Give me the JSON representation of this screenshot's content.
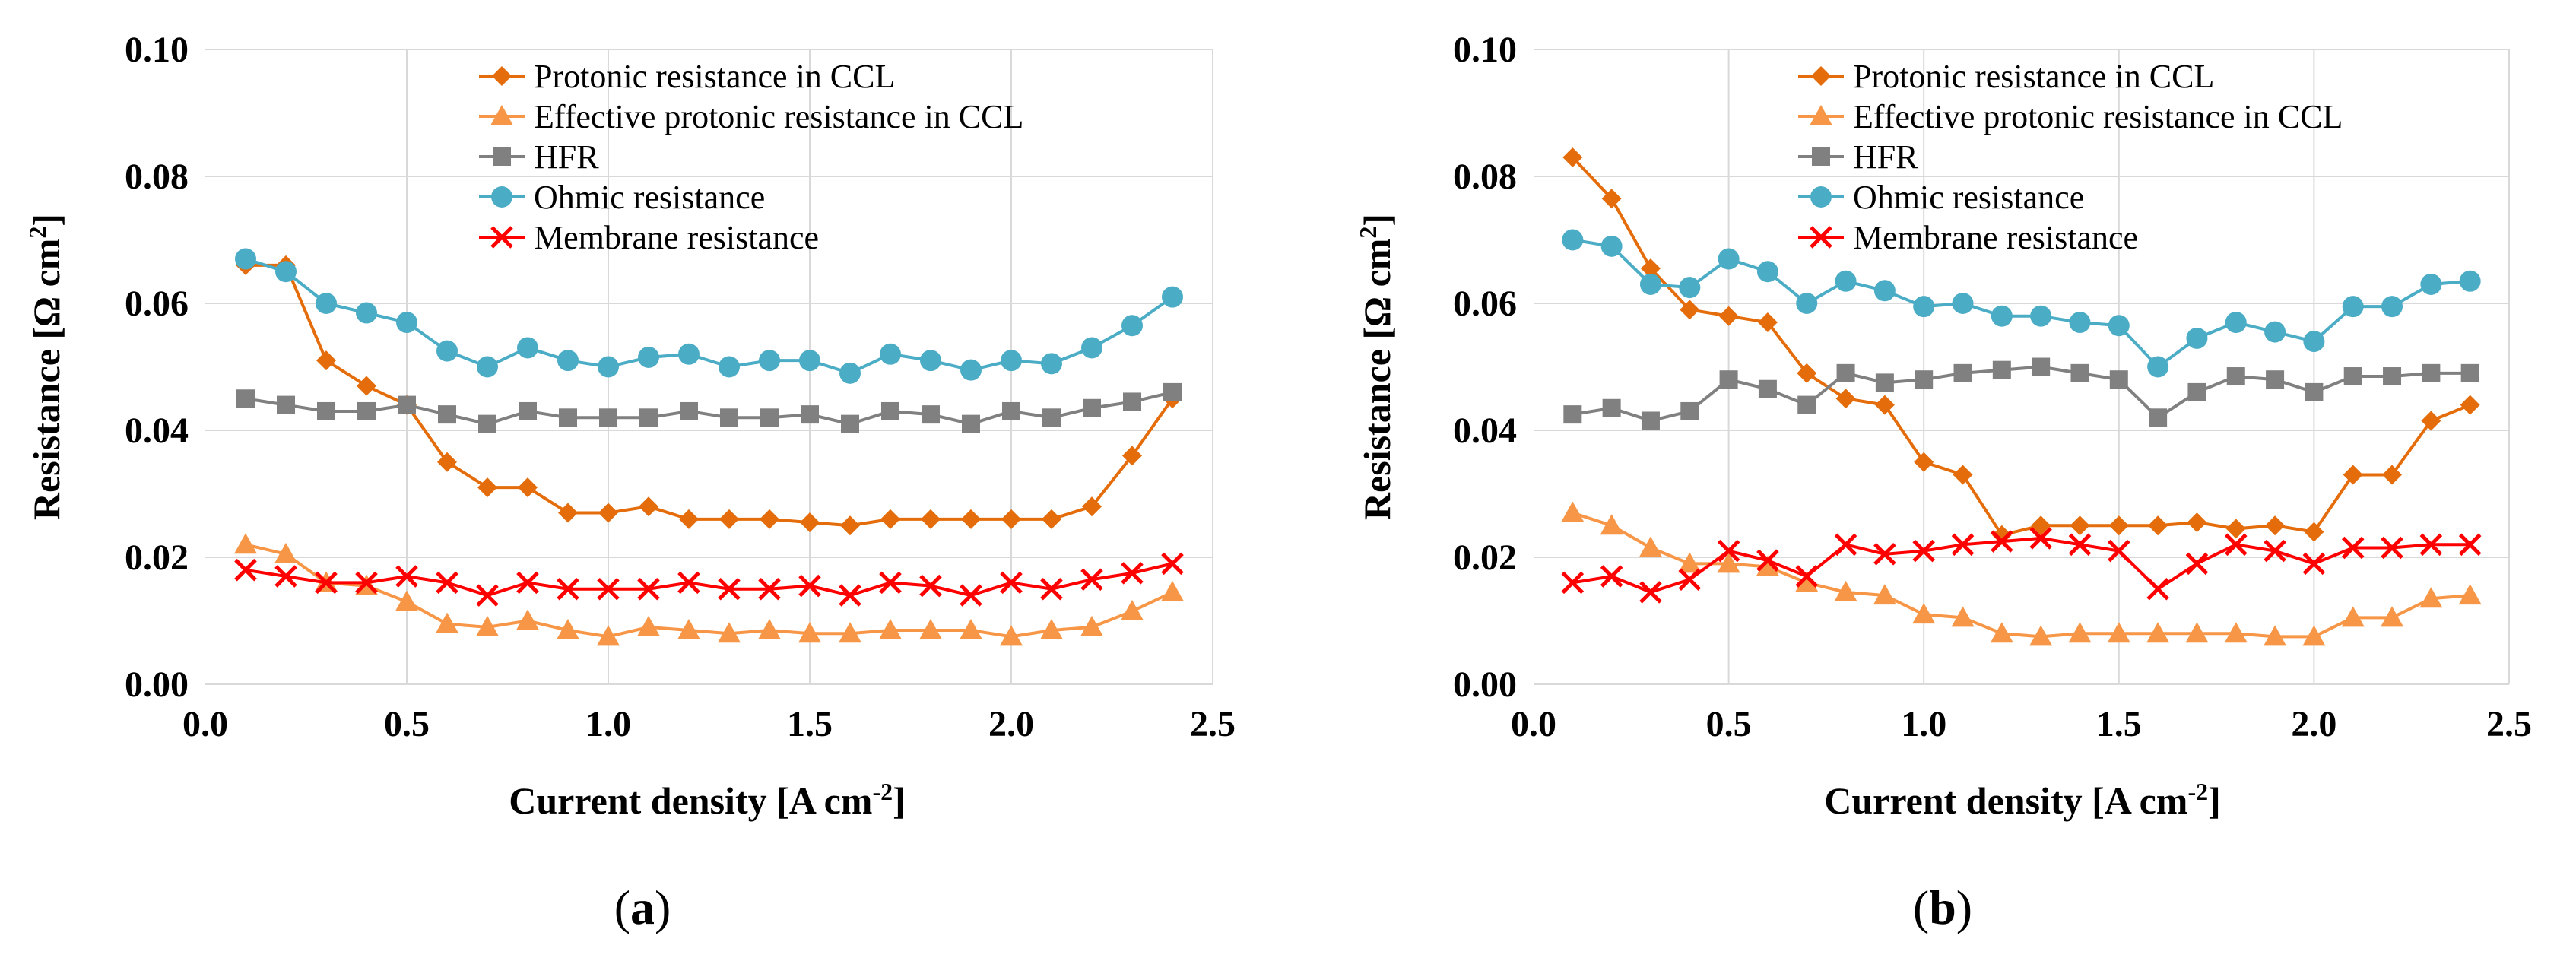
{
  "chart_data": [
    {
      "type": "line",
      "panel_label": "(a)",
      "panel_letter": "a",
      "xlabel": "Current density [A cm",
      "xlabel_sup": "-2",
      "xlabel_end": "]",
      "ylabel": "Resistance [Ω cm",
      "ylabel_sup": "2",
      "ylabel_end": "]",
      "xlim": [
        0.0,
        2.5
      ],
      "ylim": [
        0.0,
        0.1
      ],
      "xticks": [
        "0.0",
        "0.5",
        "1.0",
        "1.5",
        "2.0",
        "2.5"
      ],
      "yticks": [
        "0.00",
        "0.02",
        "0.04",
        "0.06",
        "0.08",
        "0.10"
      ],
      "grid": true,
      "legend_position": "top-center",
      "x": [
        0.1,
        0.2,
        0.3,
        0.4,
        0.5,
        0.6,
        0.7,
        0.8,
        0.9,
        1.0,
        1.1,
        1.2,
        1.3,
        1.4,
        1.5,
        1.6,
        1.7,
        1.8,
        1.9,
        2.0,
        2.1,
        2.2,
        2.3,
        2.4
      ],
      "series": [
        {
          "name": "Protonic resistance in CCL",
          "color": "#E46C0A",
          "marker": "diamond",
          "values": [
            0.066,
            0.066,
            0.051,
            0.047,
            0.044,
            0.035,
            0.031,
            0.031,
            0.027,
            0.027,
            0.028,
            0.026,
            0.026,
            0.026,
            0.0255,
            0.025,
            0.026,
            0.026,
            0.026,
            0.026,
            0.026,
            0.028,
            0.036,
            0.045
          ]
        },
        {
          "name": "Effective protonic resistance in CCL",
          "color": "#F79646",
          "marker": "triangle",
          "values": [
            0.022,
            0.0205,
            0.016,
            0.0155,
            0.013,
            0.0095,
            0.009,
            0.01,
            0.0085,
            0.0075,
            0.009,
            0.0085,
            0.008,
            0.0085,
            0.008,
            0.008,
            0.0085,
            0.0085,
            0.0085,
            0.0075,
            0.0085,
            0.009,
            0.0115,
            0.0145
          ]
        },
        {
          "name": "HFR",
          "color": "#808080",
          "marker": "square",
          "values": [
            0.045,
            0.044,
            0.043,
            0.043,
            0.044,
            0.0425,
            0.041,
            0.043,
            0.042,
            0.042,
            0.042,
            0.043,
            0.042,
            0.042,
            0.0425,
            0.041,
            0.043,
            0.0425,
            0.041,
            0.043,
            0.042,
            0.0435,
            0.0445,
            0.046
          ]
        },
        {
          "name": "Ohmic resistance",
          "color": "#4BACC6",
          "marker": "circle",
          "values": [
            0.067,
            0.065,
            0.06,
            0.0585,
            0.057,
            0.0525,
            0.05,
            0.053,
            0.051,
            0.05,
            0.0515,
            0.052,
            0.05,
            0.051,
            0.051,
            0.049,
            0.052,
            0.051,
            0.0495,
            0.051,
            0.0505,
            0.053,
            0.0565,
            0.061
          ]
        },
        {
          "name": "Membrane resistance",
          "color": "#FF0000",
          "marker": "x",
          "values": [
            0.018,
            0.017,
            0.016,
            0.016,
            0.017,
            0.016,
            0.014,
            0.016,
            0.015,
            0.015,
            0.015,
            0.016,
            0.015,
            0.015,
            0.0155,
            0.014,
            0.016,
            0.0155,
            0.014,
            0.016,
            0.015,
            0.0165,
            0.0175,
            0.019
          ]
        }
      ]
    },
    {
      "type": "line",
      "panel_label": "(b)",
      "panel_letter": "b",
      "xlabel": "Current density [A cm",
      "xlabel_sup": "-2",
      "xlabel_end": "]",
      "ylabel": "Resistance [Ω cm",
      "ylabel_sup": "2",
      "ylabel_end": "]",
      "xlim": [
        0.0,
        2.5
      ],
      "ylim": [
        0.0,
        0.1
      ],
      "xticks": [
        "0.0",
        "0.5",
        "1.0",
        "1.5",
        "2.0",
        "2.5"
      ],
      "yticks": [
        "0.00",
        "0.02",
        "0.04",
        "0.06",
        "0.08",
        "0.10"
      ],
      "grid": true,
      "legend_position": "top-center",
      "x": [
        0.1,
        0.2,
        0.3,
        0.4,
        0.5,
        0.6,
        0.7,
        0.8,
        0.9,
        1.0,
        1.1,
        1.2,
        1.3,
        1.4,
        1.5,
        1.6,
        1.7,
        1.8,
        1.9,
        2.0,
        2.1,
        2.2,
        2.3,
        2.4
      ],
      "series": [
        {
          "name": "Protonic resistance in CCL",
          "color": "#E46C0A",
          "marker": "diamond",
          "values": [
            0.083,
            0.0765,
            0.0655,
            0.059,
            0.058,
            0.057,
            0.049,
            0.045,
            0.044,
            0.035,
            0.033,
            0.0235,
            0.025,
            0.025,
            0.025,
            0.025,
            0.0255,
            0.0245,
            0.025,
            0.024,
            0.033,
            0.033,
            0.0415,
            0.044
          ]
        },
        {
          "name": "Effective protonic resistance in CCL",
          "color": "#F79646",
          "marker": "triangle",
          "values": [
            0.027,
            0.025,
            0.0215,
            0.019,
            0.019,
            0.0185,
            0.016,
            0.0145,
            0.014,
            0.011,
            0.0105,
            0.008,
            0.0075,
            0.008,
            0.008,
            0.008,
            0.008,
            0.008,
            0.0075,
            0.0075,
            0.0105,
            0.0105,
            0.0135,
            0.014
          ]
        },
        {
          "name": "HFR",
          "color": "#808080",
          "marker": "square",
          "values": [
            0.0425,
            0.0435,
            0.0415,
            0.043,
            0.048,
            0.0465,
            0.044,
            0.049,
            0.0475,
            0.048,
            0.049,
            0.0495,
            0.05,
            0.049,
            0.048,
            0.042,
            0.046,
            0.0485,
            0.048,
            0.046,
            0.0485,
            0.0485,
            0.049,
            0.049
          ]
        },
        {
          "name": "Ohmic resistance",
          "color": "#4BACC6",
          "marker": "circle",
          "values": [
            0.07,
            0.069,
            0.063,
            0.0625,
            0.067,
            0.065,
            0.06,
            0.0635,
            0.062,
            0.0595,
            0.06,
            0.058,
            0.058,
            0.057,
            0.0565,
            0.05,
            0.0545,
            0.057,
            0.0555,
            0.054,
            0.0595,
            0.0595,
            0.063,
            0.0635
          ]
        },
        {
          "name": "Membrane resistance",
          "color": "#FF0000",
          "marker": "x",
          "values": [
            0.016,
            0.017,
            0.0145,
            0.0165,
            0.021,
            0.0195,
            0.017,
            0.022,
            0.0205,
            0.021,
            0.022,
            0.0225,
            0.023,
            0.022,
            0.021,
            0.015,
            0.019,
            0.022,
            0.021,
            0.019,
            0.0215,
            0.0215,
            0.022,
            0.022
          ]
        }
      ]
    }
  ]
}
